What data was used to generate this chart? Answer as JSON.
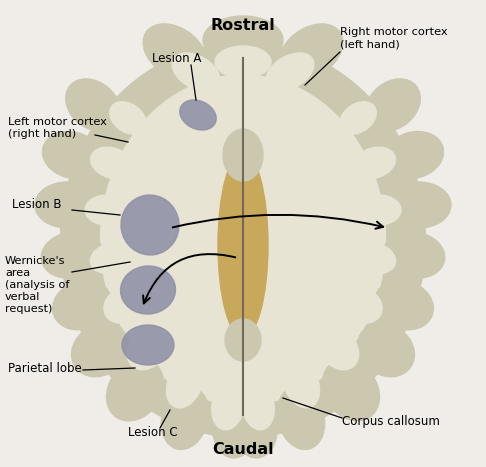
{
  "background_color": "#f0ede8",
  "brain_outer_color": "#ccc8b0",
  "brain_inner_color": "#e8e4d4",
  "corpus_callosum_color": "#c8a85a",
  "lesion_color": "#9090a8",
  "title_rostral": "Rostral",
  "title_caudal": "Caudal",
  "label_lesion_a": "Lesion A",
  "label_lesion_b": "Lesion B",
  "label_lesion_c": "Lesion C",
  "label_left_motor": "Left motor cortex\n(right hand)",
  "label_right_motor": "Right motor cortex\n(left hand)",
  "label_wernickes": "Wernicke's\narea\n(analysis of\nverbal\nrequest)",
  "label_parietal": "Parietal lobe",
  "label_corpus": "Corpus callosum"
}
